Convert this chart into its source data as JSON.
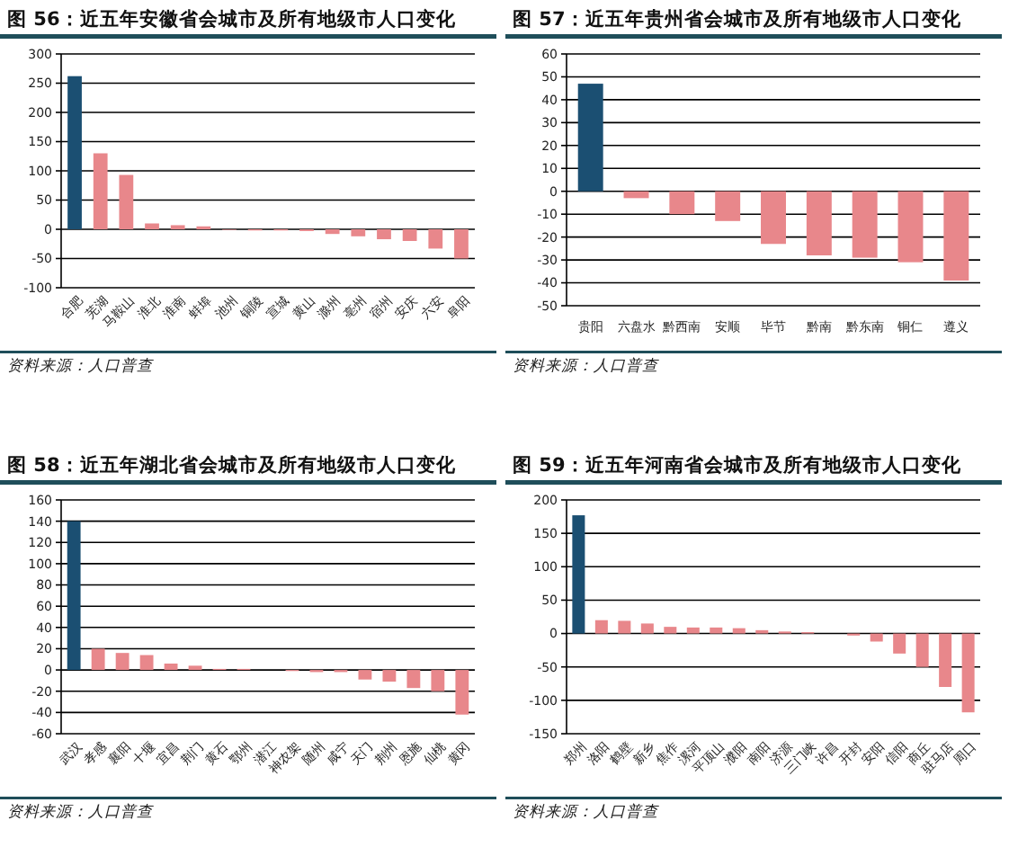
{
  "chart_data": [
    {
      "type": "bar",
      "title": "图 56：近五年安徽省会城市及所有地级市人口变化",
      "categories": [
        "合肥",
        "芜湖",
        "马鞍山",
        "淮北",
        "淮南",
        "蚌埠",
        "池州",
        "铜陵",
        "宣城",
        "黄山",
        "滁州",
        "亳州",
        "宿州",
        "安庆",
        "六安",
        "阜阳"
      ],
      "values": [
        262,
        130,
        93,
        10,
        7,
        5,
        -1,
        -2,
        -2,
        -3,
        -8,
        -12,
        -17,
        -20,
        -33,
        -50
      ],
      "colors": [
        "#1b4f72",
        "#e8878b",
        "#e8878b",
        "#e8878b",
        "#e8878b",
        "#e8878b",
        "#e8878b",
        "#e8878b",
        "#e8878b",
        "#e8878b",
        "#e8878b",
        "#e8878b",
        "#e8878b",
        "#e8878b",
        "#e8878b",
        "#e8878b"
      ],
      "ylim": [
        -100,
        300
      ],
      "yticks": [
        -100,
        -50,
        0,
        50,
        100,
        150,
        200,
        250,
        300
      ],
      "grid": "y",
      "annotations": [
        "资料来源：人口普查"
      ]
    },
    {
      "type": "bar",
      "title": "图 57：近五年贵州省会城市及所有地级市人口变化",
      "categories": [
        "贵阳",
        "六盘水",
        "黔西南",
        "安顺",
        "毕节",
        "黔南",
        "黔东南",
        "铜仁",
        "遵义"
      ],
      "values": [
        47,
        -3,
        -10,
        -13,
        -23,
        -28,
        -29,
        -31,
        -39
      ],
      "colors": [
        "#1b4f72",
        "#e8878b",
        "#e8878b",
        "#e8878b",
        "#e8878b",
        "#e8878b",
        "#e8878b",
        "#e8878b",
        "#e8878b"
      ],
      "ylim": [
        -50,
        60
      ],
      "yticks": [
        -50,
        -40,
        -30,
        -20,
        -10,
        0,
        10,
        20,
        30,
        40,
        50,
        60
      ],
      "grid": "y",
      "annotations": [
        "资料来源：人口普查"
      ]
    },
    {
      "type": "bar",
      "title": "图 58：近五年湖北省会城市及所有地级市人口变化",
      "categories": [
        "武汉",
        "孝感",
        "襄阳",
        "十堰",
        "宜昌",
        "荆门",
        "黄石",
        "鄂州",
        "潜江",
        "神农架",
        "随州",
        "咸宁",
        "天门",
        "荆州",
        "恩施",
        "仙桃",
        "黄冈"
      ],
      "values": [
        140,
        20,
        16,
        14,
        6,
        4,
        1,
        1,
        0,
        -1,
        -2,
        -2,
        -9,
        -11,
        -17,
        -20,
        -42
      ],
      "colors": [
        "#1b4f72",
        "#e8878b",
        "#e8878b",
        "#e8878b",
        "#e8878b",
        "#e8878b",
        "#e8878b",
        "#e8878b",
        "#e8878b",
        "#e8878b",
        "#e8878b",
        "#e8878b",
        "#e8878b",
        "#e8878b",
        "#e8878b",
        "#e8878b",
        "#e8878b"
      ],
      "ylim": [
        -60,
        160
      ],
      "yticks": [
        -60,
        -40,
        -20,
        0,
        20,
        40,
        60,
        80,
        100,
        120,
        140,
        160
      ],
      "grid": "y",
      "annotations": [
        "资料来源：人口普查"
      ]
    },
    {
      "type": "bar",
      "title": "图 59：近五年河南省会城市及所有地级市人口变化",
      "categories": [
        "郑州",
        "洛阳",
        "鹤壁",
        "新乡",
        "焦作",
        "漯河",
        "平顶山",
        "濮阳",
        "南阳",
        "济源",
        "三门峡",
        "许昌",
        "开封",
        "安阳",
        "信阳",
        "商丘",
        "驻马店",
        "周口"
      ],
      "values": [
        177,
        20,
        19,
        15,
        10,
        9,
        9,
        8,
        5,
        3,
        2,
        0,
        -3,
        -12,
        -30,
        -50,
        -80,
        -118
      ],
      "colors": [
        "#1b4f72",
        "#e8878b",
        "#e8878b",
        "#e8878b",
        "#e8878b",
        "#e8878b",
        "#e8878b",
        "#e8878b",
        "#e8878b",
        "#e8878b",
        "#e8878b",
        "#e8878b",
        "#e8878b",
        "#e8878b",
        "#e8878b",
        "#e8878b",
        "#e8878b",
        "#e8878b"
      ],
      "ylim": [
        -150,
        200
      ],
      "yticks": [
        -150,
        -100,
        -50,
        0,
        50,
        100,
        150,
        200
      ],
      "grid": "y",
      "annotations": [
        "资料来源：人口普查"
      ]
    }
  ]
}
